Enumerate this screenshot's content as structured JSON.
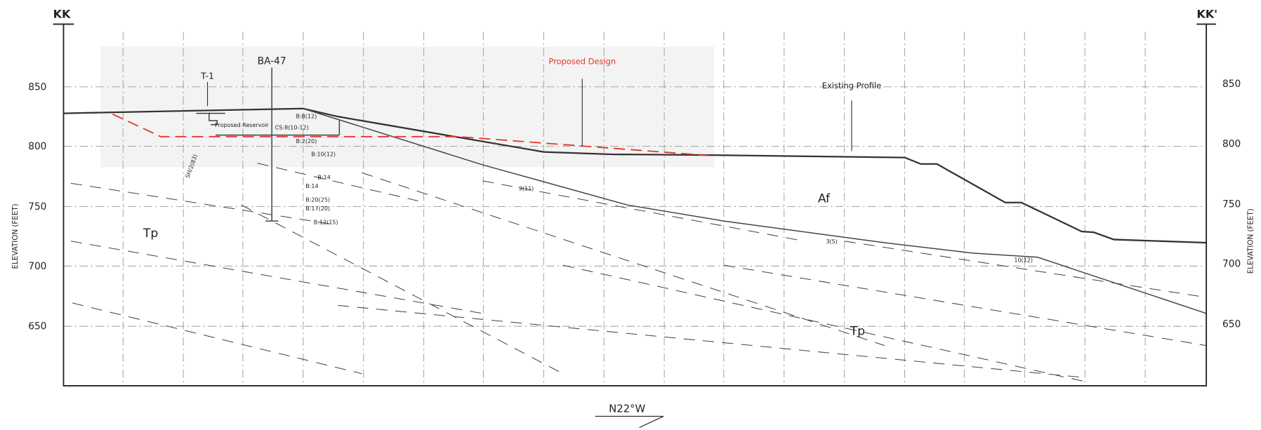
{
  "header": {
    "left": "KK",
    "right": "KK'"
  },
  "axes": {
    "left_label": "ELEVATION (FEET)",
    "right_label": "ELEVATION (FEET)",
    "left_ticks": [
      "850",
      "800",
      "750",
      "700",
      "650"
    ],
    "right_ticks": [
      "850",
      "800",
      "750",
      "700",
      "650"
    ]
  },
  "labels": {
    "t1": "T-1",
    "ba47": "BA-47",
    "proposed_design": "Proposed Design",
    "existing_profile": "Existing Profile",
    "proposed_reservoir": "Proposed Reservoir",
    "af": "Af",
    "tp_left": "Tp",
    "tp_right": "Tp",
    "direction": "N22°W"
  },
  "borings": [
    "B:8(12)",
    "CS:8(10-12)",
    "B:2(20)",
    "B:10(12)",
    "B:14",
    "B:14",
    "B:20(25)",
    "B:17(20)",
    "B:12(15)",
    "9(11)",
    "3(5)",
    "10(12)",
    "SH/2(83)"
  ]
}
